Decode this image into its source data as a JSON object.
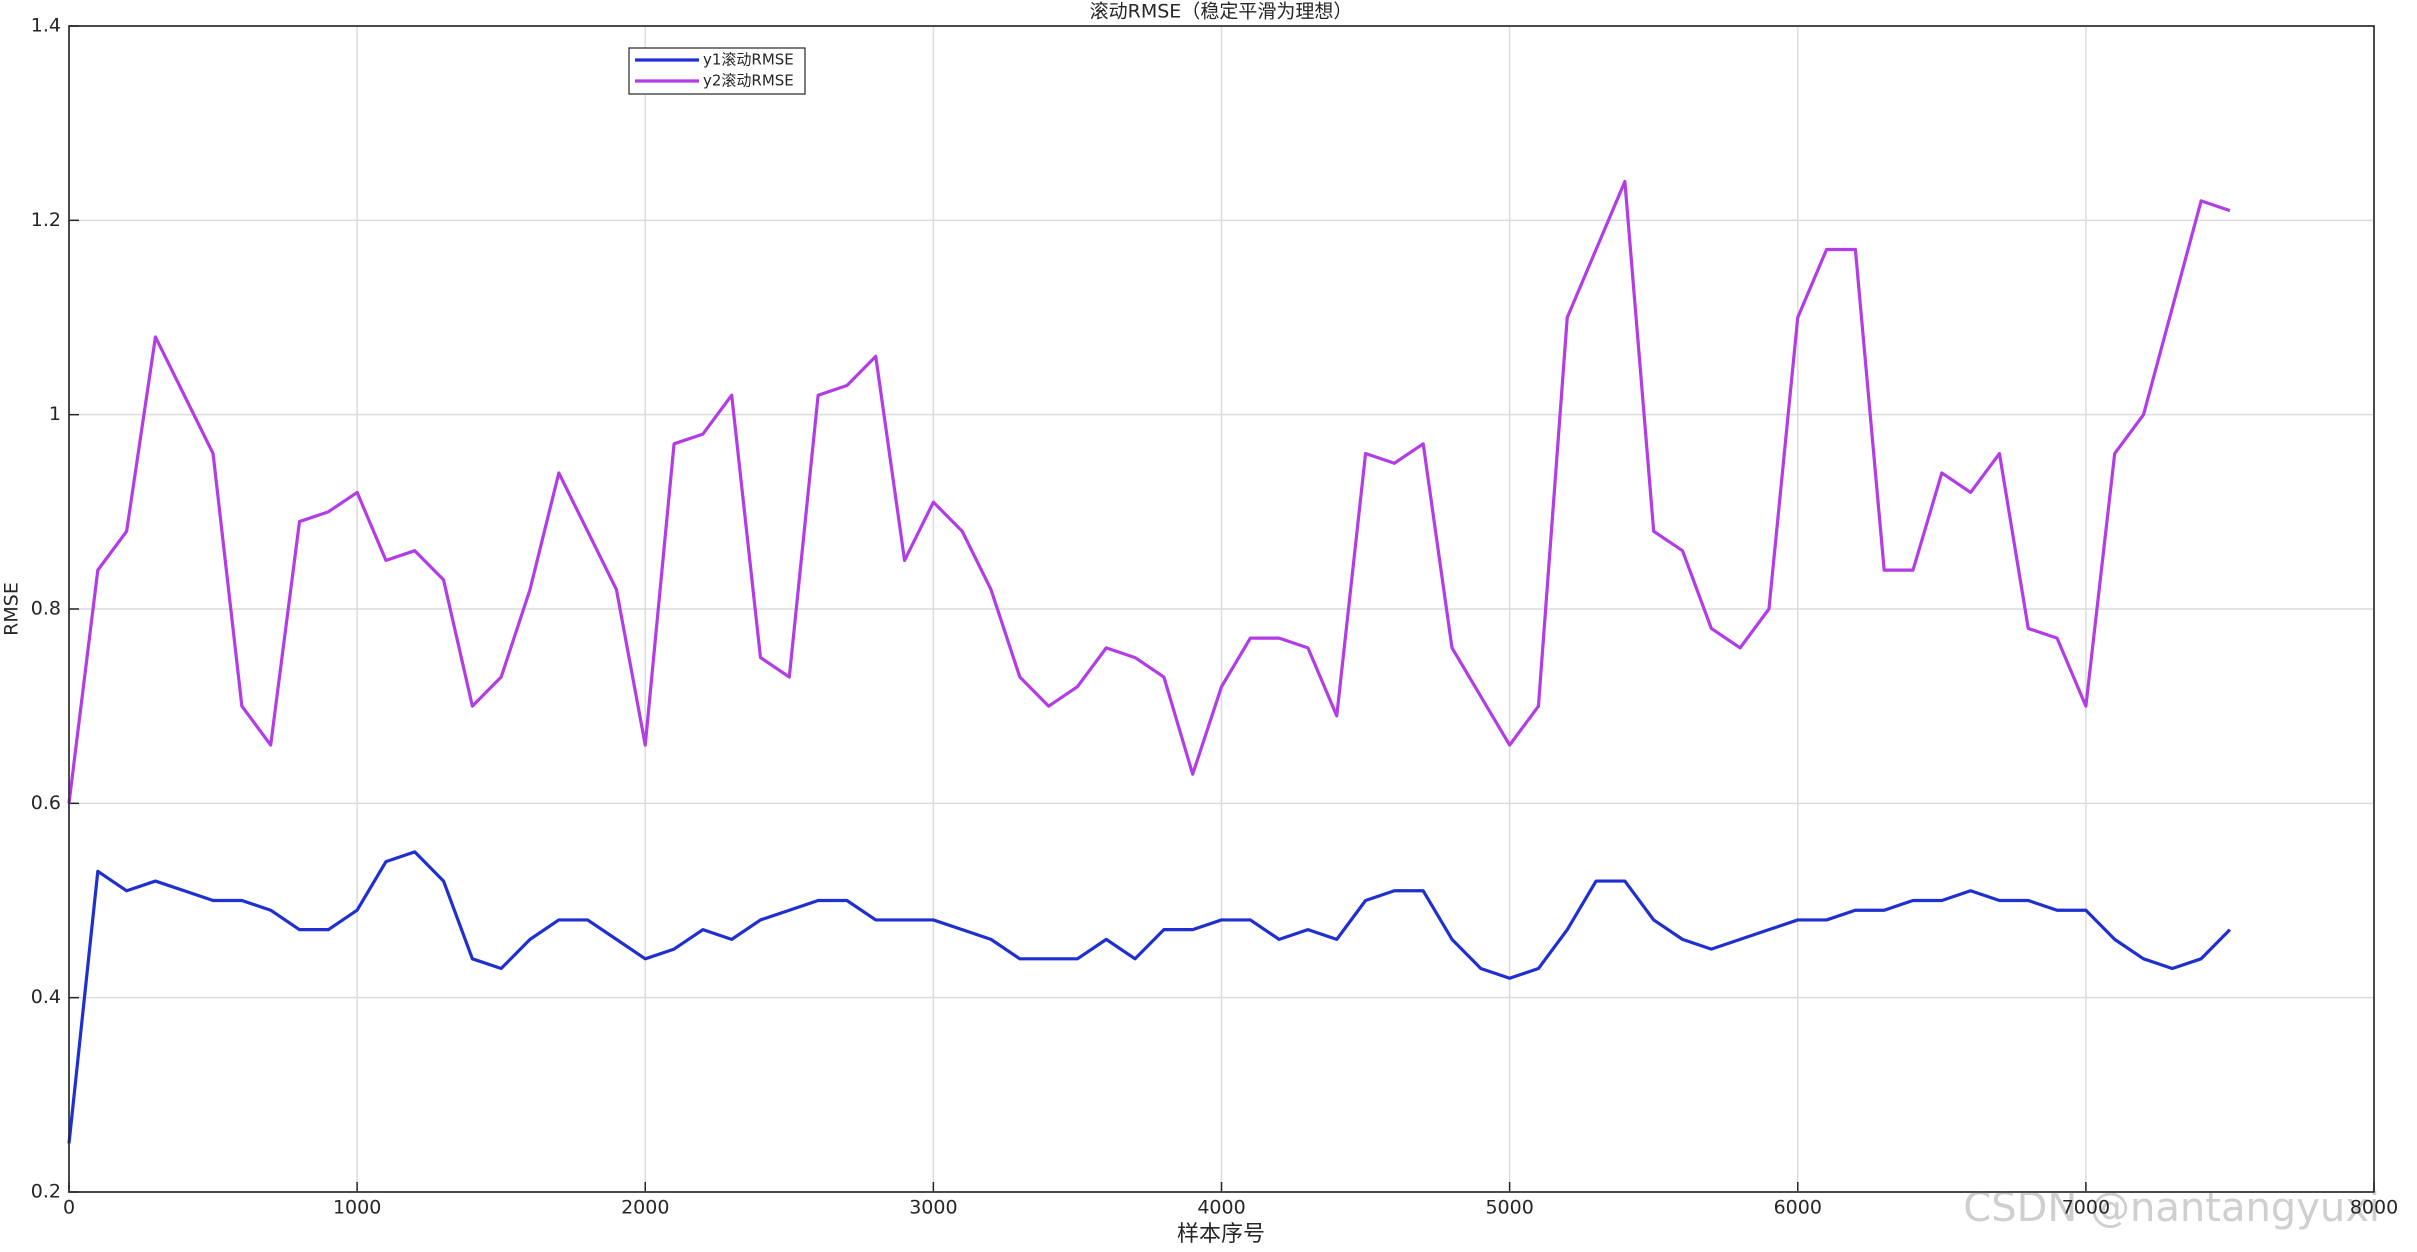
{
  "chart_data": {
    "type": "line",
    "title": "滚动RMSE（稳定平滑为理想）",
    "x_label": "样本序号",
    "y_label": "RMSE",
    "x": [
      0,
      100,
      200,
      300,
      400,
      500,
      600,
      700,
      800,
      900,
      1000,
      1100,
      1200,
      1300,
      1400,
      1500,
      1600,
      1700,
      1800,
      1900,
      2000,
      2100,
      2200,
      2300,
      2400,
      2500,
      2600,
      2700,
      2800,
      2900,
      3000,
      3100,
      3200,
      3300,
      3400,
      3500,
      3600,
      3700,
      3800,
      3900,
      4000,
      4100,
      4200,
      4300,
      4400,
      4500,
      4600,
      4700,
      4800,
      4900,
      5000,
      5100,
      5200,
      5300,
      5400,
      5500,
      5600,
      5700,
      5800,
      5900,
      6000,
      6100,
      6200,
      6300,
      6400,
      6500,
      6600,
      6700,
      6800,
      6900,
      7000,
      7100,
      7200,
      7300,
      7400,
      7500
    ],
    "series": [
      {
        "name": "y1滚动RMSE",
        "color": "#1f2fd0",
        "values": [
          0.25,
          0.53,
          0.51,
          0.52,
          0.51,
          0.5,
          0.5,
          0.49,
          0.47,
          0.47,
          0.49,
          0.54,
          0.55,
          0.52,
          0.44,
          0.43,
          0.46,
          0.48,
          0.48,
          0.46,
          0.44,
          0.45,
          0.47,
          0.46,
          0.48,
          0.49,
          0.5,
          0.5,
          0.48,
          0.48,
          0.48,
          0.47,
          0.46,
          0.44,
          0.44,
          0.44,
          0.46,
          0.44,
          0.47,
          0.47,
          0.48,
          0.48,
          0.46,
          0.47,
          0.46,
          0.5,
          0.51,
          0.51,
          0.46,
          0.43,
          0.42,
          0.43,
          0.47,
          0.52,
          0.52,
          0.48,
          0.46,
          0.45,
          0.46,
          0.47,
          0.48,
          0.48,
          0.49,
          0.49,
          0.5,
          0.5,
          0.51,
          0.5,
          0.5,
          0.49,
          0.49,
          0.46,
          0.44,
          0.43,
          0.44,
          0.47
        ]
      },
      {
        "name": "y2滚动RMSE",
        "color": "#b23ce6",
        "values": [
          0.6,
          0.84,
          0.88,
          1.08,
          1.02,
          0.96,
          0.7,
          0.66,
          0.89,
          0.9,
          0.92,
          0.85,
          0.86,
          0.83,
          0.7,
          0.73,
          0.82,
          0.94,
          0.88,
          0.82,
          0.66,
          0.97,
          0.98,
          1.02,
          0.75,
          0.73,
          1.02,
          1.03,
          1.06,
          0.85,
          0.91,
          0.88,
          0.82,
          0.73,
          0.7,
          0.72,
          0.76,
          0.75,
          0.73,
          0.63,
          0.72,
          0.77,
          0.77,
          0.76,
          0.69,
          0.96,
          0.95,
          0.97,
          0.76,
          0.71,
          0.66,
          0.7,
          1.1,
          1.17,
          1.24,
          0.88,
          0.86,
          0.78,
          0.76,
          0.8,
          1.1,
          1.17,
          1.17,
          0.84,
          0.84,
          0.94,
          0.92,
          0.96,
          0.78,
          0.77,
          0.7,
          0.96,
          1.0,
          1.11,
          1.22,
          1.21
        ]
      }
    ],
    "xlim": [
      0,
      8000
    ],
    "xticks": [
      0,
      1000,
      2000,
      3000,
      4000,
      5000,
      6000,
      7000,
      8000
    ],
    "ylim": [
      0.2,
      1.4
    ],
    "yticks": [
      0.2,
      0.4,
      0.6,
      0.8,
      1,
      1.2,
      1.4
    ],
    "grid": true,
    "legend": "upper-left",
    "watermark": "CSDN @nantangyuxi"
  }
}
